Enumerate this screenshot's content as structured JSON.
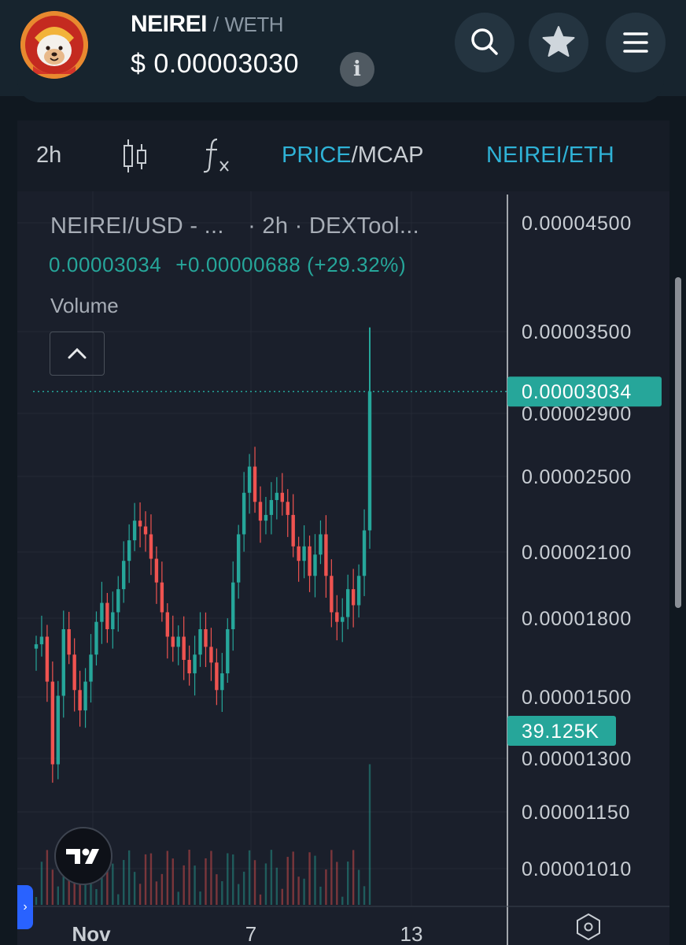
{
  "header": {
    "base_symbol": "NEIREI",
    "separator": "/",
    "quote_symbol": "WETH",
    "price": "$  0.00003030",
    "info_icon_label": "i"
  },
  "header_buttons": [
    "search-icon",
    "star-icon",
    "menu-icon"
  ],
  "toolbar": {
    "interval": "2h",
    "chart_type_icon": "candles-icon",
    "indicators_icon": "fx-icon",
    "price_label": "PRICE",
    "slash": "/",
    "mcap_label": "MCAP",
    "pair_label": "NEIREI/ETH"
  },
  "legend": {
    "title": "NEIREI/USD - ...",
    "interval": "· 2h · DEXTool...",
    "last": "0.00003034",
    "change": "+0.00000688 (+29.32%)",
    "volume_label": "Volume"
  },
  "colors": {
    "up": "#26a69a",
    "down": "#ef5350",
    "background": "#1a1f2b",
    "price_badge": "#26a69a"
  },
  "chart_data": {
    "type": "candlestick",
    "price_scale": "log",
    "y_ticks": [
      4.5e-05,
      3.5e-05,
      2.9e-05,
      2.5e-05,
      2.1e-05,
      1.8e-05,
      1.5e-05,
      1.3e-05,
      1.15e-05,
      1.01e-05
    ],
    "y_tick_labels": [
      "0.00004500",
      "0.00003500",
      "0.00002900",
      "0.00002500",
      "0.00002100",
      "0.00001800",
      "0.00001500",
      "0.00001300",
      "0.00001150",
      "0.00001010"
    ],
    "x_tick_labels": [
      "Nov",
      "7",
      "13"
    ],
    "last_price": 3.034e-05,
    "last_price_label": "0.00003034",
    "last_volume_label": "39.125K",
    "close_path": [
      1.69e-05,
      1.72e-05,
      1.55e-05,
      1.28e-05,
      1.5e-05,
      1.75e-05,
      1.65e-05,
      1.52e-05,
      1.45e-05,
      1.55e-05,
      1.65e-05,
      1.78e-05,
      1.86e-05,
      1.75e-05,
      1.82e-05,
      1.92e-05,
      2.05e-05,
      2.15e-05,
      2.25e-05,
      2.22e-05,
      2.18e-05,
      2.06e-05,
      1.95e-05,
      1.82e-05,
      1.72e-05,
      1.68e-05,
      1.72e-05,
      1.63e-05,
      1.58e-05,
      1.65e-05,
      1.75e-05,
      1.68e-05,
      1.62e-05,
      1.52e-05,
      1.58e-05,
      1.75e-05,
      1.95e-05,
      2.18e-05,
      2.4e-05,
      2.55e-05,
      2.35e-05,
      2.25e-05,
      2.28e-05,
      2.36e-05,
      2.4e-05,
      2.35e-05,
      2.28e-05,
      2.12e-05,
      2.05e-05,
      2.12e-05,
      1.98e-05,
      2.08e-05,
      2.18e-05,
      1.98e-05,
      1.82e-05,
      1.78e-05,
      1.8e-05,
      1.92e-05,
      1.85e-05,
      1.98e-05,
      2.2e-05,
      3.034e-05
    ]
  }
}
